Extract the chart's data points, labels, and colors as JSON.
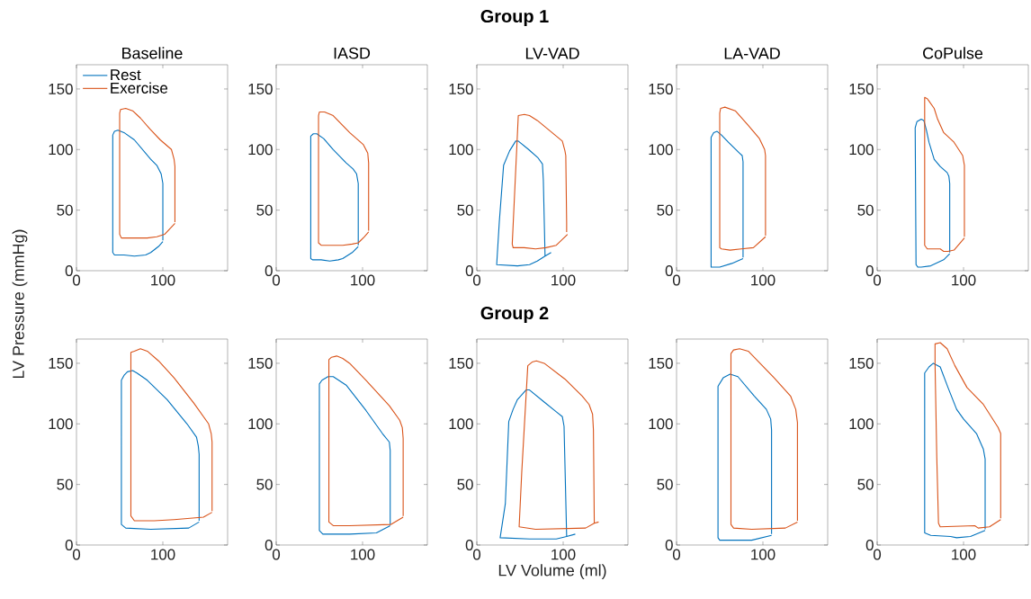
{
  "chart_data": [
    {
      "type": "line",
      "title": "Baseline",
      "annotations": [
        "Group 1"
      ],
      "xlim": [
        0,
        175
      ],
      "ylim": [
        0,
        170
      ],
      "xticks": [
        0,
        100
      ],
      "yticks": [
        0,
        50,
        100,
        150
      ],
      "legend": "top left",
      "series": [
        {
          "name": "Rest",
          "color": "#0072bd",
          "x": [
            100,
            100,
            98,
            93,
            86,
            67,
            55,
            48,
            44,
            42,
            42,
            44,
            55,
            67,
            80,
            86,
            95,
            100
          ],
          "values": [
            25,
            72,
            80,
            87,
            92,
            108,
            114,
            116,
            115,
            112,
            15,
            13,
            13,
            12,
            13,
            15,
            20,
            24
          ]
        },
        {
          "name": "Exercise",
          "color": "#d95319",
          "x": [
            114,
            114,
            113,
            110,
            97,
            85,
            74,
            65,
            57,
            51,
            50,
            50,
            52,
            67,
            82,
            93,
            102,
            114
          ],
          "values": [
            40,
            86,
            92,
            100,
            108,
            117,
            126,
            132,
            134,
            133,
            130,
            30,
            27,
            27,
            27,
            28,
            30,
            39
          ]
        }
      ]
    },
    {
      "type": "line",
      "title": "IASD",
      "xlim": [
        0,
        175
      ],
      "ylim": [
        0,
        170
      ],
      "xticks": [
        0,
        100
      ],
      "yticks": [
        0,
        50,
        100,
        150
      ],
      "series": [
        {
          "color": "#0072bd",
          "x": [
            95,
            95,
            93,
            89,
            81,
            66,
            55,
            47,
            43,
            40,
            40,
            42,
            52,
            62,
            72,
            77,
            88,
            95
          ],
          "values": [
            21,
            72,
            80,
            84,
            89,
            100,
            109,
            113,
            113,
            111,
            10,
            9,
            9,
            8,
            9,
            10,
            15,
            20
          ]
        },
        {
          "color": "#d95319",
          "x": [
            107,
            107,
            106,
            101,
            85,
            66,
            56,
            50,
            49,
            49,
            52,
            62,
            77,
            88,
            95,
            102,
            107
          ],
          "values": [
            33,
            89,
            97,
            104,
            114,
            128,
            131,
            131,
            128,
            23,
            21,
            21,
            21,
            22,
            23,
            28,
            32
          ]
        }
      ]
    },
    {
      "type": "line",
      "title": "LV-VAD",
      "xlim": [
        0,
        175
      ],
      "ylim": [
        0,
        170
      ],
      "xticks": [
        0,
        100
      ],
      "yticks": [
        0,
        50,
        100,
        150
      ],
      "series": [
        {
          "color": "#0072bd",
          "x": [
            86,
            79,
            70,
            61,
            47,
            23,
            26,
            31,
            38,
            45,
            48,
            60,
            71,
            76,
            77,
            79
          ],
          "values": [
            15,
            12,
            8,
            5,
            4,
            5,
            40,
            87,
            99,
            107,
            107,
            100,
            93,
            88,
            75,
            12
          ]
        },
        {
          "color": "#d95319",
          "x": [
            104,
            104,
            103,
            102,
            99,
            82,
            70,
            61,
            55,
            48,
            41,
            42,
            55,
            68,
            80,
            92,
            105
          ],
          "values": [
            32,
            40,
            95,
            99,
            107,
            117,
            124,
            128,
            129,
            128,
            22,
            19,
            19,
            18,
            19,
            21,
            30
          ]
        }
      ]
    },
    {
      "type": "line",
      "title": "LA-VAD",
      "xlim": [
        0,
        175
      ],
      "ylim": [
        0,
        170
      ],
      "xticks": [
        0,
        100
      ],
      "yticks": [
        0,
        50,
        100,
        150
      ],
      "series": [
        {
          "color": "#0072bd",
          "x": [
            77,
            77,
            76,
            73,
            60,
            52,
            47,
            43,
            40,
            40,
            45,
            50,
            64,
            77
          ],
          "values": [
            11,
            90,
            95,
            97,
            106,
            112,
            115,
            114,
            110,
            3,
            3,
            3,
            6,
            10
          ]
        },
        {
          "color": "#d95319",
          "x": [
            103,
            103,
            102,
            96,
            83,
            68,
            56,
            51,
            50,
            50,
            52,
            62,
            75,
            89,
            103
          ],
          "values": [
            29,
            95,
            100,
            109,
            120,
            132,
            135,
            134,
            130,
            19,
            18,
            17,
            18,
            19,
            28
          ]
        }
      ]
    },
    {
      "type": "line",
      "title": "CoPulse",
      "xlim": [
        0,
        175
      ],
      "ylim": [
        0,
        170
      ],
      "xticks": [
        0,
        100
      ],
      "yticks": [
        0,
        50,
        100,
        150
      ],
      "series": [
        {
          "color": "#0072bd",
          "x": [
            84,
            84,
            83,
            81,
            73,
            66,
            63,
            60,
            57,
            54,
            51,
            46,
            44,
            45,
            47,
            51,
            62,
            77,
            84
          ],
          "values": [
            15,
            72,
            78,
            81,
            86,
            92,
            99,
            106,
            116,
            124,
            125,
            123,
            118,
            5,
            3,
            3,
            4,
            9,
            14
          ]
        },
        {
          "color": "#d95319",
          "x": [
            101,
            101,
            99,
            89,
            77,
            70,
            66,
            60,
            58,
            55,
            55,
            58,
            68,
            73,
            77,
            82,
            89,
            101
          ],
          "values": [
            28,
            87,
            95,
            106,
            114,
            125,
            134,
            140,
            142,
            143,
            21,
            18,
            18,
            18,
            16,
            16,
            17,
            27
          ]
        }
      ]
    },
    {
      "type": "line",
      "annotations": [
        "Group 2"
      ],
      "ylabel": "LV Pressure (mmHg)",
      "xlim": [
        0,
        175
      ],
      "ylim": [
        0,
        170
      ],
      "xticks": [
        0,
        100
      ],
      "yticks": [
        0,
        50,
        100,
        150
      ],
      "series": [
        {
          "color": "#0072bd",
          "x": [
            142,
            142,
            141,
            139,
            128,
            105,
            82,
            70,
            65,
            59,
            55,
            52,
            52,
            57,
            86,
            130,
            142
          ],
          "values": [
            20,
            75,
            82,
            89,
            100,
            120,
            136,
            142,
            144,
            143,
            140,
            136,
            17,
            14,
            13,
            14,
            19
          ]
        },
        {
          "color": "#d95319",
          "x": [
            157,
            157,
            156,
            153,
            136,
            113,
            95,
            82,
            74,
            67,
            63,
            63,
            67,
            90,
            113,
            147,
            157
          ],
          "values": [
            28,
            85,
            92,
            100,
            117,
            138,
            152,
            160,
            162,
            160,
            159,
            24,
            20,
            20,
            21,
            23,
            27
          ]
        }
      ]
    },
    {
      "type": "line",
      "xlim": [
        0,
        175
      ],
      "ylim": [
        0,
        170
      ],
      "xticks": [
        0,
        100
      ],
      "yticks": [
        0,
        50,
        100,
        150
      ],
      "series": [
        {
          "color": "#0072bd",
          "x": [
            132,
            132,
            131,
            123,
            104,
            81,
            66,
            60,
            53,
            50,
            50,
            54,
            85,
            116,
            132
          ],
          "values": [
            17,
            78,
            85,
            92,
            111,
            132,
            139,
            139,
            136,
            133,
            12,
            9,
            9,
            10,
            16
          ]
        },
        {
          "color": "#d95319",
          "x": [
            147,
            147,
            146,
            143,
            131,
            104,
            85,
            77,
            70,
            64,
            61,
            61,
            66,
            85,
            133,
            147
          ],
          "values": [
            24,
            88,
            97,
            103,
            115,
            136,
            150,
            154,
            156,
            155,
            153,
            19,
            16,
            16,
            17,
            23
          ]
        }
      ]
    },
    {
      "type": "line",
      "xlabel": "LV Volume (ml)",
      "xlim": [
        0,
        175
      ],
      "ylim": [
        0,
        170
      ],
      "xticks": [
        0,
        100
      ],
      "yticks": [
        0,
        50,
        100,
        150
      ],
      "series": [
        {
          "color": "#0072bd",
          "x": [
            114,
            104,
            92,
            61,
            27,
            33,
            37,
            42,
            47,
            57,
            61,
            78,
            92,
            99,
            101,
            104
          ],
          "values": [
            9,
            7,
            5,
            5,
            6,
            34,
            102,
            112,
            120,
            128,
            128,
            118,
            110,
            106,
            98,
            7
          ]
        },
        {
          "color": "#d95319",
          "x": [
            141,
            136,
            126,
            68,
            49,
            52,
            59,
            64,
            69,
            78,
            102,
            122,
            130,
            134,
            135,
            136
          ],
          "values": [
            19,
            18,
            14,
            13,
            15,
            60,
            148,
            151,
            152,
            150,
            137,
            123,
            116,
            108,
            95,
            18
          ]
        }
      ]
    },
    {
      "type": "line",
      "xlim": [
        0,
        175
      ],
      "ylim": [
        0,
        170
      ],
      "xticks": [
        0,
        100
      ],
      "yticks": [
        0,
        50,
        100,
        150
      ],
      "series": [
        {
          "color": "#0072bd",
          "x": [
            110,
            110,
            109,
            104,
            90,
            71,
            62,
            54,
            48,
            48,
            50,
            87,
            110
          ],
          "values": [
            9,
            95,
            104,
            112,
            123,
            139,
            141,
            138,
            131,
            6,
            4,
            4,
            8
          ]
        },
        {
          "color": "#d95319",
          "x": [
            140,
            140,
            138,
            132,
            113,
            83,
            73,
            66,
            63,
            63,
            66,
            87,
            126,
            140
          ],
          "values": [
            20,
            101,
            112,
            123,
            138,
            160,
            162,
            161,
            158,
            17,
            14,
            13,
            14,
            19
          ]
        }
      ]
    },
    {
      "type": "line",
      "xlim": [
        0,
        175
      ],
      "ylim": [
        0,
        170
      ],
      "xticks": [
        0,
        100
      ],
      "yticks": [
        0,
        50,
        100,
        150
      ],
      "series": [
        {
          "color": "#0072bd",
          "x": [
            125,
            125,
            123,
            115,
            100,
            92,
            82,
            73,
            65,
            60,
            55,
            55,
            62,
            85,
            92,
            108,
            125
          ],
          "values": [
            13,
            71,
            79,
            92,
            104,
            112,
            130,
            147,
            150,
            147,
            142,
            10,
            8,
            7,
            6,
            7,
            12
          ]
        },
        {
          "color": "#d95319",
          "x": [
            143,
            143,
            140,
            123,
            104,
            90,
            81,
            73,
            67,
            67,
            69,
            71,
            73,
            113,
            117,
            130,
            143
          ],
          "values": [
            22,
            92,
            97,
            116,
            130,
            148,
            162,
            167,
            166,
            150,
            73,
            18,
            15,
            16,
            14,
            15,
            21
          ]
        }
      ]
    }
  ]
}
